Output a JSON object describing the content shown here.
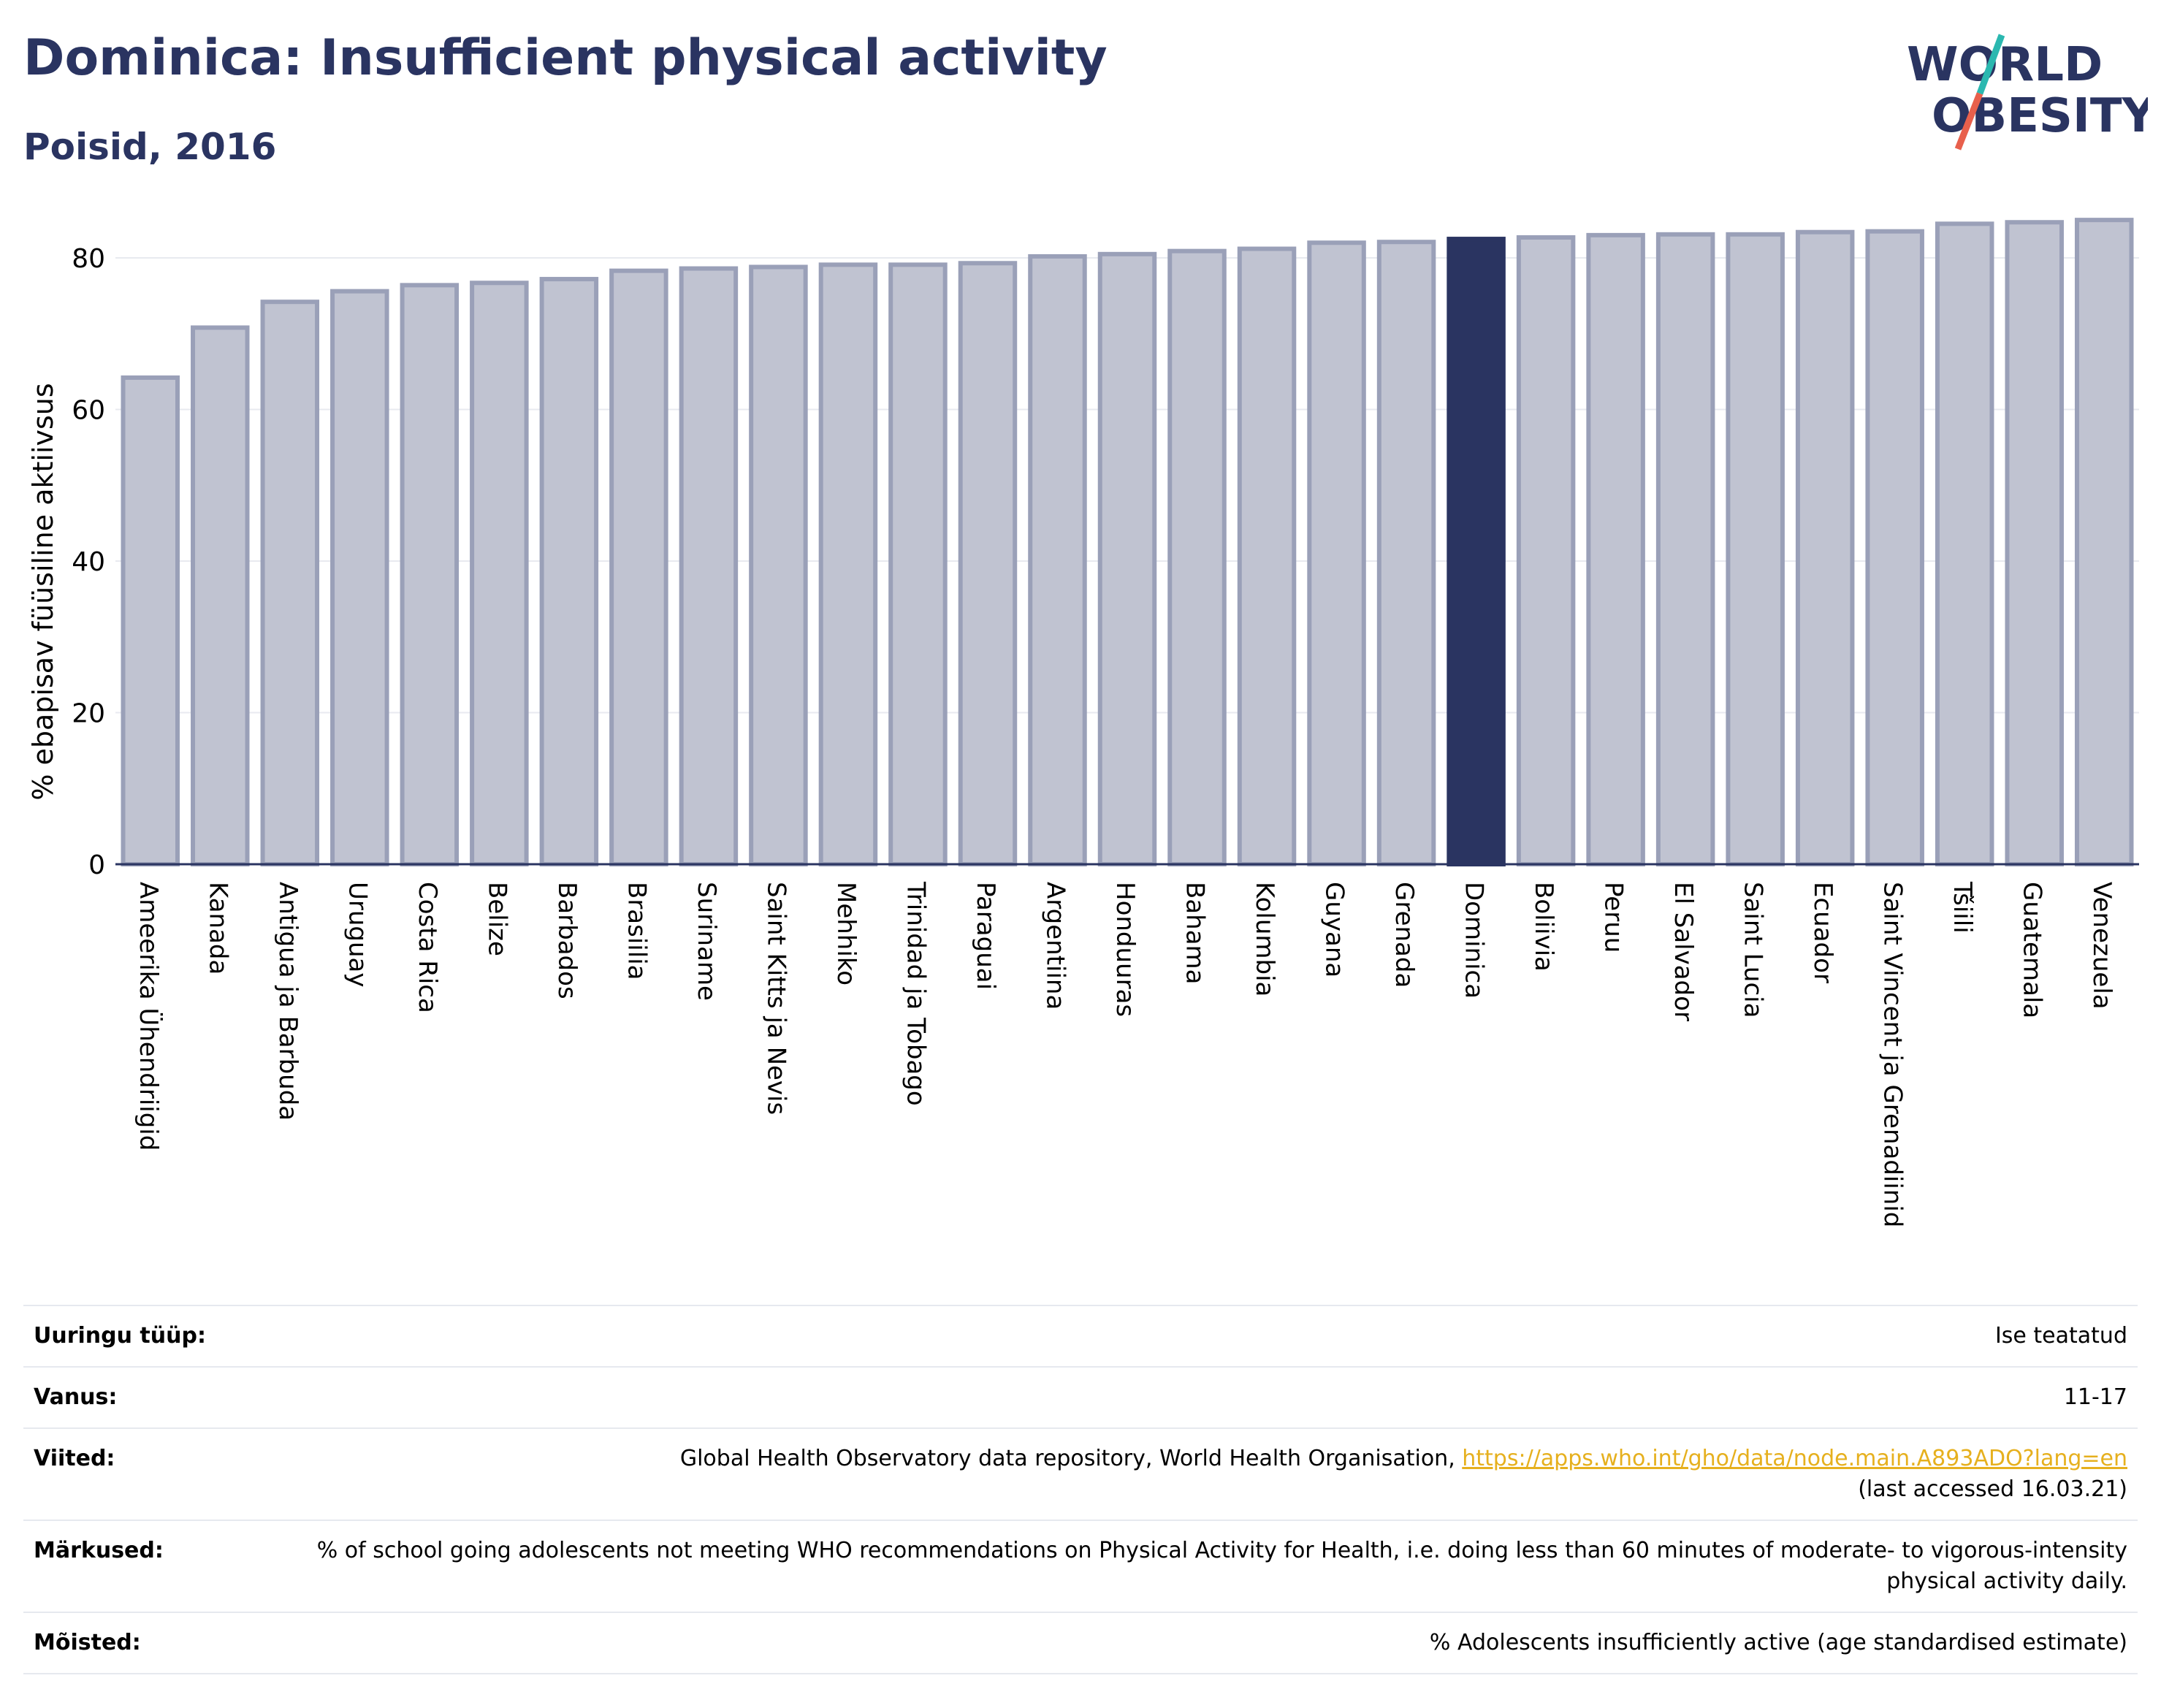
{
  "header": {
    "title": "Dominica: Insufficient physical activity",
    "subtitle": "Poisid, 2016"
  },
  "logo": {
    "line1": "WORLD",
    "line2": "OBESITY",
    "colors": {
      "text": "#2a3461",
      "slash_teal": "#2bb8b0",
      "slash_red": "#e8604c"
    }
  },
  "colors": {
    "highlight_bar": "#2a3461",
    "bar_fill": "#c0c3d1",
    "bar_stroke": "#9aa0b8",
    "axis_text": "#000000",
    "grid": "#e8eaf0"
  },
  "chart_data": {
    "type": "bar",
    "ylabel": "% ebapisav füüsiline aktiivsus",
    "ylim": [
      0,
      88
    ],
    "yticks": [
      0,
      20,
      40,
      60,
      80
    ],
    "grid": true,
    "highlight": "Dominica",
    "categories": [
      "Ameerika Ühendriigid",
      "Kanada",
      "Antigua ja Barbuda",
      "Uruguay",
      "Costa Rica",
      "Belize",
      "Barbados",
      "Brasiilia",
      "Suriname",
      "Saint Kitts ja Nevis",
      "Mehhiko",
      "Trinidad ja Tobago",
      "Paraguai",
      "Argentiina",
      "Honduuras",
      "Bahama",
      "Kolumbia",
      "Guyana",
      "Grenada",
      "Dominica",
      "Boliivia",
      "Peruu",
      "El Salvador",
      "Saint Lucia",
      "Ecuador",
      "Saint Vincent ja Grenadiinid",
      "Tšiili",
      "Guatemala",
      "Venezuela"
    ],
    "values": [
      64.2,
      70.8,
      74.2,
      75.6,
      76.4,
      76.7,
      77.2,
      78.3,
      78.6,
      78.8,
      79.1,
      79.1,
      79.3,
      80.2,
      80.5,
      80.9,
      81.2,
      82.0,
      82.1,
      82.5,
      82.7,
      83.0,
      83.1,
      83.1,
      83.4,
      83.5,
      84.5,
      84.7,
      85.0
    ]
  },
  "info": [
    {
      "label": "Uuringu tüüp:",
      "value": "Ise teatatud"
    },
    {
      "label": "Vanus:",
      "value": "11-17"
    },
    {
      "label": "Viited:",
      "value": "Global Health Observatory data repository, World Health Organisation, ",
      "link": "https://apps.who.int/gho/data/node.main.A893ADO?lang=en",
      "suffix": "(last accessed 16.03.21)"
    },
    {
      "label": "Märkused:",
      "value": "% of school going adolescents not meeting WHO recommendations on Physical Activity for Health, i.e. doing less than 60 minutes of moderate- to vigorous-intensity physical activity daily."
    },
    {
      "label": "Mõisted:",
      "value": "% Adolescents insufficiently active (age standardised estimate)"
    }
  ]
}
